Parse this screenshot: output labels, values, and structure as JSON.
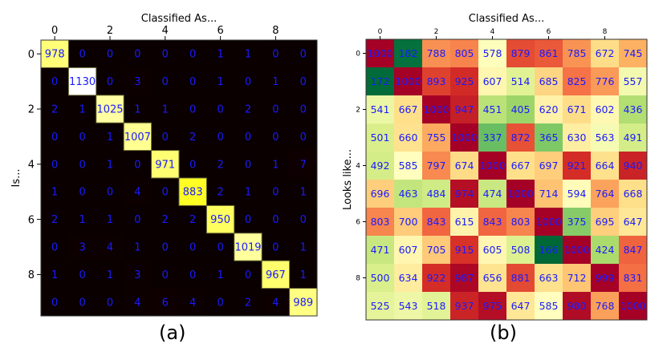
{
  "chart_data": [
    {
      "type": "heatmap",
      "panel_label": "(a)",
      "title": "Classified As...",
      "ylabel": "Is...",
      "xticks": [
        "0",
        "2",
        "4",
        "6",
        "8"
      ],
      "yticks": [
        "0",
        "2",
        "4",
        "6",
        "8"
      ],
      "colormap": "hot",
      "vmin": 0,
      "vmax": 1130,
      "values": [
        [
          978,
          0,
          0,
          0,
          0,
          0,
          1,
          1,
          0,
          0
        ],
        [
          0,
          1130,
          0,
          3,
          0,
          0,
          1,
          0,
          1,
          0
        ],
        [
          2,
          1,
          1025,
          1,
          1,
          0,
          0,
          2,
          0,
          0
        ],
        [
          0,
          0,
          1,
          1007,
          0,
          2,
          0,
          0,
          0,
          0
        ],
        [
          0,
          0,
          1,
          0,
          971,
          0,
          2,
          0,
          1,
          7
        ],
        [
          1,
          0,
          0,
          4,
          0,
          883,
          2,
          1,
          0,
          1
        ],
        [
          2,
          1,
          1,
          0,
          2,
          2,
          950,
          0,
          0,
          0
        ],
        [
          0,
          3,
          4,
          1,
          0,
          0,
          0,
          1019,
          0,
          1
        ],
        [
          1,
          0,
          1,
          3,
          0,
          0,
          1,
          0,
          967,
          1
        ],
        [
          0,
          0,
          0,
          4,
          6,
          4,
          0,
          2,
          4,
          989
        ]
      ]
    },
    {
      "type": "heatmap",
      "panel_label": "(b)",
      "title": "Classified As...",
      "ylabel": "Looks like...",
      "xticks": [
        "0",
        "2",
        "4",
        "6",
        "8"
      ],
      "yticks": [
        "0",
        "2",
        "4",
        "6",
        "8"
      ],
      "colormap": "RdYlGn_r",
      "vmin": 166,
      "vmax": 1000,
      "values": [
        [
          1000,
          182,
          788,
          805,
          578,
          879,
          861,
          785,
          672,
          745
        ],
        [
          172,
          1000,
          893,
          925,
          607,
          514,
          685,
          825,
          776,
          557
        ],
        [
          541,
          667,
          1000,
          947,
          451,
          405,
          620,
          671,
          602,
          436
        ],
        [
          501,
          660,
          755,
          1000,
          337,
          872,
          365,
          630,
          563,
          491
        ],
        [
          492,
          585,
          797,
          674,
          1000,
          667,
          697,
          921,
          664,
          940
        ],
        [
          696,
          463,
          484,
          974,
          474,
          1000,
          714,
          594,
          764,
          668
        ],
        [
          803,
          700,
          843,
          615,
          843,
          803,
          1000,
          375,
          695,
          647
        ],
        [
          471,
          607,
          705,
          915,
          605,
          508,
          166,
          1000,
          424,
          847
        ],
        [
          500,
          634,
          922,
          987,
          656,
          881,
          663,
          712,
          999,
          831
        ],
        [
          525,
          543,
          518,
          937,
          975,
          647,
          585,
          980,
          768,
          1000
        ]
      ]
    }
  ],
  "colors": {
    "cell_text": "#1a1aff"
  }
}
